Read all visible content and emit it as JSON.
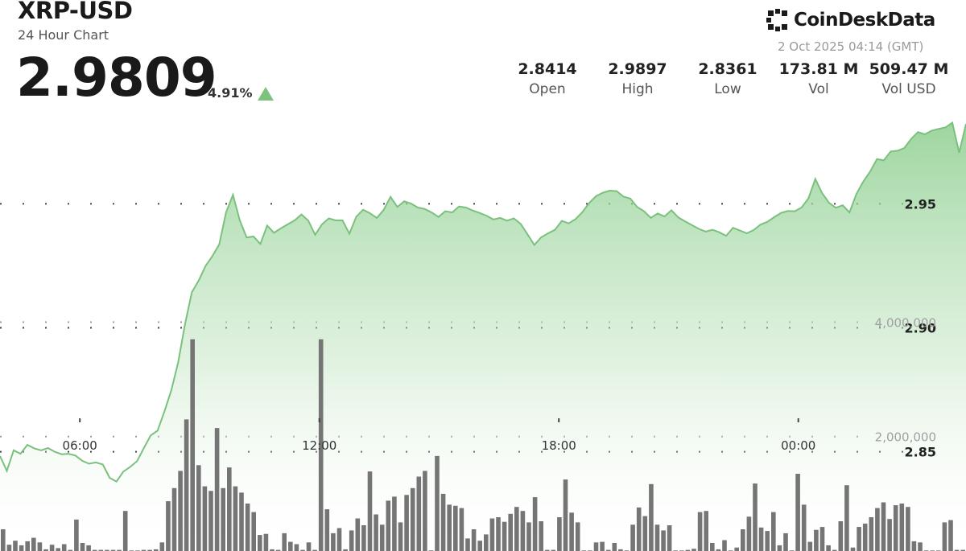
{
  "header": {
    "title": "XRP-USD",
    "subtitle": "24 Hour Chart",
    "price": "2.9809",
    "change": "4.91%",
    "change_direction": "up",
    "brand": "CoinDeskData",
    "timestamp": "2 Oct 2025 04:14 (GMT)",
    "stats": [
      {
        "value": "2.8414",
        "label": "Open"
      },
      {
        "value": "2.9897",
        "label": "High"
      },
      {
        "value": "2.8361",
        "label": "Low"
      },
      {
        "value": "173.81 M",
        "label": "Vol"
      },
      {
        "value": "509.47 M",
        "label": "Vol USD"
      }
    ]
  },
  "colors": {
    "line": "#7bc17e",
    "area_top": "#8cce8e",
    "volume_bar": "#6e6e6e",
    "arrow_up": "#7cc47e",
    "grid_dots": "#444444"
  },
  "chart_data": {
    "type": "area",
    "title": "XRP-USD",
    "x_tick_labels": [
      "06:00",
      "12:00",
      "18:00",
      "00:00"
    ],
    "x_tick_hours": [
      6,
      12,
      18,
      24
    ],
    "x_range_hours": [
      4.0,
      28.2
    ],
    "price_ylim": [
      2.81,
      2.99
    ],
    "price_ticks": [
      2.85,
      2.9,
      2.95
    ],
    "volume_ylim": [
      0,
      4400000
    ],
    "volume_ticks": [
      2000000,
      4000000
    ],
    "volume_tick_labels": [
      "2,000,000",
      "4,000,000"
    ],
    "series": [
      {
        "name": "Price",
        "values": [
          2.8483,
          2.8423,
          2.8506,
          2.8492,
          2.8528,
          2.8514,
          2.8506,
          2.8515,
          2.85,
          2.849,
          2.8492,
          2.8485,
          2.8464,
          2.8452,
          2.8457,
          2.8449,
          2.8395,
          2.838,
          2.842,
          2.8439,
          2.8462,
          2.8515,
          2.8566,
          2.8585,
          2.8663,
          2.8748,
          2.886,
          2.9014,
          2.9143,
          2.919,
          2.9249,
          2.9289,
          2.9336,
          2.9466,
          2.9536,
          2.9433,
          2.9364,
          2.9368,
          2.9338,
          2.9412,
          2.9383,
          2.9401,
          2.9417,
          2.9433,
          2.9457,
          2.9432,
          2.9375,
          2.9417,
          2.9441,
          2.9433,
          2.9433,
          2.9379,
          2.9448,
          2.9476,
          2.9462,
          2.9443,
          2.9475,
          2.9528,
          2.9487,
          2.951,
          2.9501,
          2.9485,
          2.9479,
          2.9465,
          2.9447,
          2.947,
          2.9465,
          2.9489,
          2.9485,
          2.9473,
          2.9463,
          2.9452,
          2.9437,
          2.9443,
          2.9432,
          2.9441,
          2.9419,
          2.9377,
          2.9334,
          2.9365,
          2.9381,
          2.9395,
          2.9431,
          2.9421,
          2.9438,
          2.9466,
          2.9503,
          2.9531,
          2.9545,
          2.9553,
          2.9551,
          2.9529,
          2.9521,
          2.9487,
          2.947,
          2.9443,
          2.9461,
          2.9449,
          2.9474,
          2.9445,
          2.9429,
          2.9414,
          2.9399,
          2.9388,
          2.9395,
          2.9385,
          2.9371,
          2.9403,
          2.9392,
          2.9381,
          2.9394,
          2.9416,
          2.9427,
          2.9446,
          2.9463,
          2.9471,
          2.947,
          2.9485,
          2.9522,
          2.96,
          2.9543,
          2.9504,
          2.9484,
          2.9494,
          2.9465,
          2.9539,
          2.9589,
          2.963,
          2.968,
          2.9675,
          2.9711,
          2.9714,
          2.9725,
          2.9762,
          2.9789,
          2.978,
          2.9795,
          2.9802,
          2.9808,
          2.9827,
          2.9706,
          2.9822
        ]
      },
      {
        "name": "Volume",
        "values": [
          380000,
          110000,
          180000,
          100000,
          170000,
          230000,
          150000,
          30000,
          110000,
          50000,
          120000,
          20000,
          550000,
          140000,
          100000,
          20000,
          20000,
          20000,
          20000,
          20000,
          700000,
          10000,
          10000,
          20000,
          20000,
          30000,
          150000,
          870000,
          1100000,
          1400000,
          2300000,
          3700000,
          1500000,
          1130000,
          1050000,
          2150000,
          1100000,
          1460000,
          1130000,
          1020000,
          830000,
          680000,
          280000,
          300000,
          30000,
          20000,
          310000,
          160000,
          120000,
          20000,
          150000,
          20000,
          3700000,
          730000,
          310000,
          400000,
          30000,
          360000,
          570000,
          450000,
          1390000,
          640000,
          460000,
          880000,
          950000,
          500000,
          980000,
          1100000,
          1300000,
          1400000,
          10000,
          1660000,
          1000000,
          810000,
          790000,
          750000,
          220000,
          380000,
          180000,
          290000,
          570000,
          590000,
          510000,
          650000,
          770000,
          700000,
          500000,
          940000,
          520000,
          20000,
          20000,
          590000,
          1250000,
          670000,
          500000,
          10000,
          10000,
          150000,
          160000,
          20000,
          140000,
          30000,
          10000,
          460000,
          760000,
          610000,
          1170000,
          460000,
          360000,
          450000,
          10000,
          10000,
          20000,
          40000,
          680000,
          700000,
          140000,
          30000,
          190000,
          10000,
          60000,
          380000,
          600000,
          1180000,
          410000,
          350000,
          680000,
          100000,
          310000,
          10000,
          1350000,
          810000,
          160000,
          370000,
          420000,
          100000,
          20000,
          520000,
          1150000,
          60000,
          420000,
          480000,
          590000,
          750000,
          850000,
          560000,
          800000,
          830000,
          770000,
          170000,
          150000,
          10000,
          10000,
          10000,
          500000,
          540000,
          20000,
          20000
        ]
      }
    ]
  }
}
